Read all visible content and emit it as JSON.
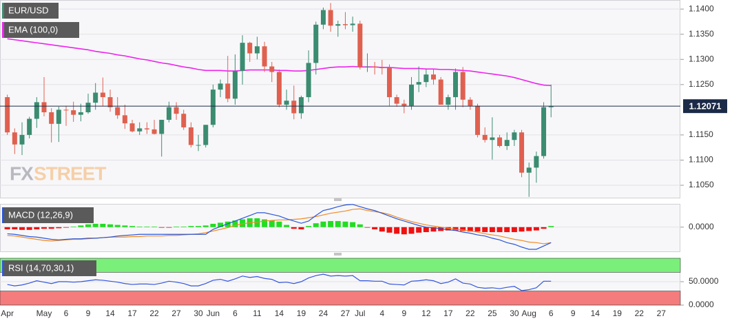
{
  "chart_data": [
    {
      "type": "candlestick",
      "title": "EUR/USD",
      "watermark": {
        "prefix": "FX",
        "suffix": "STREET"
      },
      "categories": [
        "Apr",
        null,
        null,
        null,
        null,
        "May",
        null,
        null,
        "6",
        null,
        null,
        "9",
        null,
        null,
        "14",
        null,
        null,
        "17",
        null,
        null,
        "22",
        null,
        null,
        "27",
        null,
        null,
        "30",
        null,
        "Jun",
        null,
        null,
        "6",
        null,
        null,
        "11",
        null,
        null,
        "14",
        null,
        null,
        "19",
        null,
        null,
        "24",
        null,
        null,
        "27",
        null,
        "Jul",
        null,
        null,
        "4",
        null,
        null,
        "9",
        null,
        null,
        "12",
        null,
        null,
        "17",
        null,
        null,
        "22",
        null,
        null,
        "25",
        null,
        null,
        "30",
        null,
        "Aug",
        null,
        null,
        "6",
        null,
        null,
        "9",
        null,
        null,
        "14",
        null,
        null,
        "19",
        null,
        null,
        "22",
        null,
        null,
        "27",
        null,
        null
      ],
      "open": [
        1.1225,
        1.1155,
        1.1131,
        1.115,
        1.1182,
        1.1215,
        1.1195,
        1.1172,
        1.12,
        1.1199,
        1.119,
        1.1195,
        1.1214,
        1.1234,
        1.1225,
        1.1205,
        1.1189,
        1.1173,
        1.1157,
        1.1163,
        1.1161,
        1.1152,
        1.118,
        1.1205,
        1.1192,
        1.1165,
        1.113,
        1.113,
        1.117,
        1.124,
        1.1252,
        1.1222,
        1.1277,
        1.1333,
        1.1312,
        1.1326,
        1.1286,
        1.1275,
        1.121,
        1.1218,
        1.1193,
        1.1225,
        1.1293,
        1.1369,
        1.1398,
        1.1367,
        1.137,
        1.1368,
        1.1371,
        1.1285,
        1.1286,
        1.1284,
        1.1283,
        1.1225,
        1.1212,
        1.1208,
        1.125,
        1.1255,
        1.127,
        1.126,
        1.121,
        1.1225,
        1.1275,
        1.122,
        1.1208,
        1.115,
        1.114,
        1.1145,
        1.1128,
        1.114,
        1.1155,
        1.1075,
        1.1085,
        1.1108,
        1.1205,
        null,
        null,
        null,
        null,
        null,
        null,
        null,
        null,
        null,
        null,
        null,
        null,
        null,
        null,
        null,
        null,
        null
      ],
      "high": [
        1.123,
        1.1163,
        1.1175,
        1.1186,
        1.1225,
        1.1265,
        1.1203,
        1.1206,
        1.1208,
        1.1216,
        1.1212,
        1.1232,
        1.1253,
        1.1264,
        1.124,
        1.1225,
        1.121,
        1.118,
        1.1175,
        1.1175,
        1.118,
        1.118,
        1.1216,
        1.1215,
        1.12,
        1.1175,
        1.115,
        1.117,
        1.125,
        1.126,
        1.1307,
        1.131,
        1.1348,
        1.1335,
        1.1345,
        1.1335,
        1.1295,
        1.128,
        1.124,
        1.1248,
        1.1228,
        1.1318,
        1.1375,
        1.1403,
        1.1412,
        1.1377,
        1.1394,
        1.1385,
        1.1377,
        1.1312,
        1.1295,
        1.1299,
        1.129,
        1.123,
        1.122,
        1.1265,
        1.1286,
        1.1281,
        1.128,
        1.1265,
        1.123,
        1.1282,
        1.1285,
        1.1225,
        1.1212,
        1.1165,
        1.1185,
        1.115,
        1.1155,
        1.116,
        1.116,
        1.1095,
        1.1117,
        1.1215,
        1.125,
        null,
        null,
        null,
        null,
        null,
        null,
        null,
        null,
        null,
        null,
        null,
        null,
        null,
        null,
        null,
        null,
        null
      ],
      "low": [
        1.115,
        1.1112,
        1.111,
        1.1143,
        1.1164,
        1.1187,
        1.1135,
        1.1136,
        1.1168,
        1.1176,
        1.1177,
        1.1192,
        1.12,
        1.1207,
        1.1196,
        1.1182,
        1.1162,
        1.1155,
        1.115,
        1.1152,
        1.1151,
        1.1107,
        1.1175,
        1.118,
        1.116,
        1.1125,
        1.1118,
        1.1125,
        1.1165,
        1.1225,
        1.1215,
        1.121,
        1.125,
        1.1295,
        1.13,
        1.1275,
        1.1255,
        1.1205,
        1.12,
        1.1181,
        1.1182,
        1.1215,
        1.127,
        1.136,
        1.1355,
        1.1345,
        1.136,
        1.1355,
        1.128,
        1.1275,
        1.127,
        1.127,
        1.1208,
        1.1206,
        1.1193,
        1.12,
        1.1235,
        1.1245,
        1.125,
        1.121,
        1.12,
        1.12,
        1.1205,
        1.12,
        1.1145,
        1.1135,
        1.1101,
        1.1125,
        1.112,
        1.1128,
        1.1066,
        1.1027,
        1.1055,
        1.1103,
        1.1185,
        null,
        null,
        null,
        null,
        null,
        null,
        null,
        null,
        null,
        null,
        null,
        null,
        null,
        null,
        null,
        null,
        null
      ],
      "close": [
        1.1155,
        1.1131,
        1.115,
        1.1182,
        1.1215,
        1.1195,
        1.1172,
        1.12,
        1.1199,
        1.119,
        1.1195,
        1.1214,
        1.1234,
        1.1225,
        1.1205,
        1.1189,
        1.1173,
        1.1157,
        1.1163,
        1.1161,
        1.1152,
        1.118,
        1.1205,
        1.1192,
        1.1165,
        1.113,
        1.113,
        1.117,
        1.124,
        1.1252,
        1.1222,
        1.1277,
        1.1333,
        1.1312,
        1.1326,
        1.1286,
        1.1275,
        1.121,
        1.1218,
        1.1193,
        1.1225,
        1.1293,
        1.1369,
        1.1398,
        1.1367,
        1.137,
        1.1368,
        1.1371,
        1.1285,
        1.1286,
        1.1284,
        1.1283,
        1.1225,
        1.1212,
        1.1208,
        1.125,
        1.1255,
        1.127,
        1.126,
        1.121,
        1.1225,
        1.1275,
        1.122,
        1.1208,
        1.115,
        1.114,
        1.1145,
        1.1128,
        1.114,
        1.1155,
        1.1075,
        1.1085,
        1.1108,
        1.1205,
        1.1207,
        null,
        null,
        null,
        null,
        null,
        null,
        null,
        null,
        null,
        null,
        null,
        null,
        null,
        null,
        null,
        null,
        null
      ],
      "up_color": "#3b8c70",
      "down_color": "#e0604f",
      "series": [
        {
          "name": "EMA (100,0)",
          "color": "#ee22ee",
          "values": [
            1.1341,
            1.1339,
            1.1337,
            1.1335,
            1.1333,
            1.1331,
            1.1329,
            1.1327,
            1.1325,
            1.1323,
            1.1321,
            1.1319,
            1.1316,
            1.1314,
            1.1312,
            1.1309,
            1.1307,
            1.1304,
            1.1301,
            1.1299,
            1.1296,
            1.1293,
            1.1291,
            1.1288,
            1.1285,
            1.1283,
            1.128,
            1.1278,
            1.1278,
            1.1278,
            1.1277,
            1.1277,
            1.1278,
            1.1279,
            1.1279,
            1.1279,
            1.1279,
            1.1278,
            1.1278,
            1.1277,
            1.1277,
            1.1278,
            1.128,
            1.1282,
            1.1284,
            1.1285,
            1.1285,
            1.1286,
            1.1285,
            1.1285,
            1.1285,
            1.1284,
            1.1284,
            1.1283,
            1.1282,
            1.1282,
            1.1282,
            1.1281,
            1.1281,
            1.128,
            1.128,
            1.1279,
            1.1278,
            1.1277,
            1.1275,
            1.1273,
            1.1271,
            1.1269,
            1.1267,
            1.1264,
            1.126,
            1.1256,
            1.1252,
            1.1249,
            1.1248,
            null,
            null,
            null,
            null,
            null,
            null,
            null,
            null,
            null,
            null,
            null,
            null,
            null,
            null,
            null,
            null,
            null
          ]
        }
      ],
      "current_price": 1.12071,
      "current_price_color": "#1b2a47",
      "ylim": [
        1.1024,
        1.1418
      ],
      "yticks": [
        {
          "value": 1.14,
          "label": "1.1400"
        },
        {
          "value": 1.135,
          "label": "1.1350"
        },
        {
          "value": 1.13,
          "label": "1.1300"
        },
        {
          "value": 1.125,
          "label": "1.1250"
        },
        {
          "value": 1.115,
          "label": "1.1150"
        },
        {
          "value": 1.11,
          "label": "1.1100"
        },
        {
          "value": 1.105,
          "label": "1.1050"
        }
      ],
      "grid": true
    },
    {
      "type": "macd",
      "title": "MACD (12,26,9)",
      "macd": {
        "color": "#2a55d8",
        "values": [
          -0.0012,
          -0.0013,
          -0.0015,
          -0.0017,
          -0.0018,
          -0.002,
          -0.0022,
          -0.0023,
          -0.0022,
          -0.0021,
          -0.0021,
          -0.002,
          -0.002,
          -0.0019,
          -0.0018,
          -0.0016,
          -0.0015,
          -0.0014,
          -0.0013,
          -0.0013,
          -0.0013,
          -0.0013,
          -0.0013,
          -0.0013,
          -0.0013,
          -0.0013,
          -0.0013,
          -0.0013,
          -0.0004,
          0.0001,
          0.0006,
          0.0011,
          0.0016,
          0.0021,
          0.0026,
          0.0026,
          0.0023,
          0.002,
          0.0015,
          0.0011,
          0.0007,
          0.0011,
          0.0021,
          0.003,
          0.0033,
          0.0037,
          0.004,
          0.0041,
          0.0037,
          0.0033,
          0.003,
          0.0025,
          0.002,
          0.0015,
          0.0011,
          0.0007,
          0.0003,
          0,
          -0.0001,
          -0.0003,
          -0.0005,
          -0.0006,
          -0.0009,
          -0.0011,
          -0.0014,
          -0.0016,
          -0.002,
          -0.0023,
          -0.0028,
          -0.0031,
          -0.0036,
          -0.004,
          -0.004,
          -0.0034,
          -0.0028,
          null,
          null,
          null,
          null,
          null,
          null,
          null,
          null,
          null,
          null,
          null,
          null,
          null,
          null,
          null,
          null,
          null
        ]
      },
      "signal": {
        "color": "#f08a24",
        "values": [
          -0.0015,
          -0.0016,
          -0.0018,
          -0.002,
          -0.0022,
          -0.0024,
          -0.0025,
          -0.0024,
          -0.0023,
          -0.0022,
          -0.0022,
          -0.0021,
          -0.002,
          -0.0019,
          -0.0018,
          -0.0018,
          -0.0018,
          -0.0017,
          -0.0017,
          -0.0016,
          -0.0016,
          -0.0016,
          -0.0015,
          -0.0015,
          -0.0014,
          -0.0013,
          -0.0012,
          -0.001,
          -0.0007,
          -0.0004,
          -0.0001,
          0.0003,
          0.0006,
          0.0008,
          0.0009,
          0.0011,
          0.0012,
          0.0013,
          0.0013,
          0.0014,
          0.0015,
          0.0017,
          0.0019,
          0.0022,
          0.0025,
          0.0027,
          0.0029,
          0.0032,
          0.0033,
          0.003,
          0.0028,
          0.0026,
          0.0023,
          0.0018,
          0.0014,
          0.001,
          0.0007,
          0.0004,
          0.0002,
          0,
          -0.0002,
          -0.0004,
          -0.0005,
          -0.0007,
          -0.0009,
          -0.0012,
          -0.0014,
          -0.0016,
          -0.0019,
          -0.0022,
          -0.0024,
          -0.0027,
          -0.0028,
          -0.003,
          -0.0028,
          null,
          null,
          null,
          null,
          null,
          null,
          null,
          null,
          null,
          null,
          null,
          null,
          null,
          null,
          null,
          null,
          null
        ]
      },
      "histogram": {
        "up_color": "#22dd22",
        "down_color": "#ee1111",
        "values": [
          -0.0004,
          -0.0004,
          -0.0005,
          -0.0005,
          -0.0004,
          -0.0003,
          -0.0003,
          -0.0002,
          -0.0001,
          0.0001,
          0.0003,
          0.0005,
          0.0006,
          0.0006,
          0.0005,
          0.0004,
          0.0003,
          0.0002,
          0.0001,
          0.0001,
          0.0001,
          -0.0001,
          -0.0001,
          0.0001,
          0.0001,
          0.0002,
          0.0002,
          0.0003,
          0.0006,
          0.0008,
          0.001,
          0.0012,
          0.0014,
          0.0016,
          0.0016,
          0.0014,
          0.0012,
          0.001,
          0.0004,
          -0.0003,
          -0.0004,
          0.0002,
          0.0007,
          0.001,
          0.0011,
          0.0011,
          0.001,
          0.0009,
          0.0005,
          -0.0001,
          -0.0004,
          -0.0008,
          -0.001,
          -0.0012,
          -0.0013,
          -0.0012,
          -0.001,
          -0.0009,
          -0.0008,
          -0.0007,
          -0.0006,
          -0.0006,
          -0.0007,
          -0.0008,
          -0.0008,
          -0.0009,
          -0.0009,
          -0.0009,
          -0.0009,
          -0.0009,
          -0.0008,
          -0.0007,
          -0.0006,
          -0.0003,
          0.0002,
          null,
          null,
          null,
          null,
          null,
          null,
          null,
          null,
          null,
          null,
          null,
          null,
          null,
          null,
          null,
          null,
          null
        ]
      },
      "ylim": [
        -0.0045,
        0.0042
      ],
      "yticks": [
        {
          "value": 0,
          "label": "0.0000"
        }
      ],
      "grid": true
    },
    {
      "type": "rsi",
      "title": "RSI (14,70,30,1)",
      "color": "#3355dd",
      "values": [
        44,
        41,
        43,
        47,
        52,
        49,
        46,
        50,
        50,
        49,
        50,
        52,
        54,
        53,
        51,
        49,
        46,
        44,
        45,
        45,
        44,
        47,
        51,
        49,
        46,
        41,
        41,
        46,
        53,
        55,
        51,
        56,
        62,
        59,
        61,
        57,
        55,
        48,
        49,
        46,
        50,
        58,
        63,
        66,
        62,
        63,
        62,
        63,
        52,
        52,
        51,
        51,
        45,
        44,
        43,
        51,
        52,
        54,
        52,
        46,
        49,
        56,
        47,
        45,
        38,
        36,
        37,
        35,
        38,
        40,
        31,
        33,
        37,
        51,
        51,
        null,
        null,
        null,
        null,
        null,
        null,
        null,
        null,
        null,
        null,
        null,
        null,
        null,
        null,
        null,
        null,
        null
      ],
      "bands": [
        {
          "from": 70,
          "to": 100,
          "color": "#7af07a"
        },
        {
          "from": 0,
          "to": 30,
          "color": "#f47c7c"
        }
      ],
      "ylim": [
        0,
        100
      ],
      "yticks": [
        {
          "value": 50,
          "label": "50.0000"
        },
        {
          "value": 0,
          "label": "0.0000"
        }
      ],
      "grid": true
    }
  ]
}
